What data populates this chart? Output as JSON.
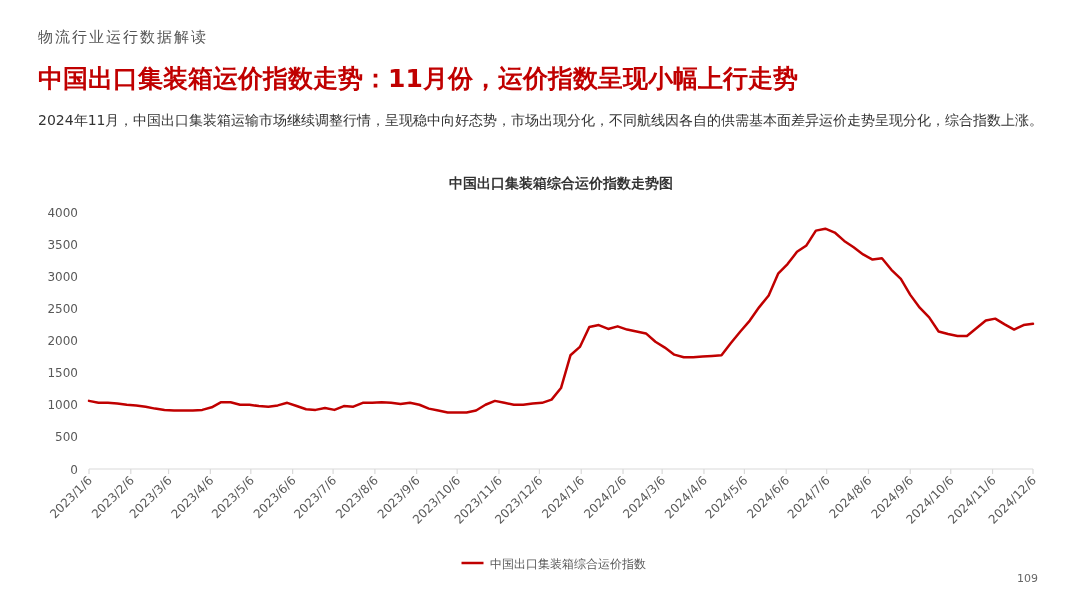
{
  "chart_data": {
    "type": "line",
    "title": "中国出口集装箱综合运价指数走势图",
    "annotations": [
      "物流行业运行数据解读",
      "中国出口集装箱运价指数走势：11月份，运价指数呈现小幅上行走势",
      "2024年11月，中国出口集装箱运输市场继续调整行情，呈现稳中向好态势，市场出现分化，不同航线因各自的供需基本面差异运价走势呈现分化，综合指数上涨。",
      "109"
    ],
    "x": [
      "2023-01-06",
      "2023-01-13",
      "2023-01-20",
      "2023-01-27",
      "2023-02-03",
      "2023-02-10",
      "2023-02-17",
      "2023-02-24",
      "2023-03-03",
      "2023-03-10",
      "2023-03-17",
      "2023-03-24",
      "2023-03-31",
      "2023-04-07",
      "2023-04-14",
      "2023-04-21",
      "2023-04-28",
      "2023-05-05",
      "2023-05-12",
      "2023-05-19",
      "2023-05-26",
      "2023-06-02",
      "2023-06-09",
      "2023-06-16",
      "2023-06-23",
      "2023-06-30",
      "2023-07-07",
      "2023-07-14",
      "2023-07-21",
      "2023-07-28",
      "2023-08-04",
      "2023-08-11",
      "2023-08-18",
      "2023-08-25",
      "2023-09-01",
      "2023-09-08",
      "2023-09-15",
      "2023-09-22",
      "2023-09-29",
      "2023-10-06",
      "2023-10-13",
      "2023-10-20",
      "2023-10-27",
      "2023-11-03",
      "2023-11-10",
      "2023-11-17",
      "2023-11-24",
      "2023-12-01",
      "2023-12-08",
      "2023-12-15",
      "2023-12-22",
      "2023-12-29",
      "2024-01-05",
      "2024-01-12",
      "2024-01-19",
      "2024-01-26",
      "2024-02-02",
      "2024-02-09",
      "2024-02-16",
      "2024-02-23",
      "2024-03-01",
      "2024-03-08",
      "2024-03-15",
      "2024-03-22",
      "2024-03-29",
      "2024-04-05",
      "2024-04-12",
      "2024-04-19",
      "2024-04-26",
      "2024-05-03",
      "2024-05-10",
      "2024-05-17",
      "2024-05-24",
      "2024-05-31",
      "2024-06-07",
      "2024-06-14",
      "2024-06-21",
      "2024-06-28",
      "2024-07-05",
      "2024-07-12",
      "2024-07-19",
      "2024-07-26",
      "2024-08-02",
      "2024-08-09",
      "2024-08-16",
      "2024-08-23",
      "2024-08-30",
      "2024-09-06",
      "2024-09-13",
      "2024-09-20",
      "2024-09-27",
      "2024-10-04",
      "2024-10-11",
      "2024-10-18",
      "2024-10-25",
      "2024-11-01",
      "2024-11-08",
      "2024-11-15",
      "2024-11-22",
      "2024-11-29",
      "2024-12-06"
    ],
    "series": [
      {
        "name": "中国出口集装箱综合运价指数",
        "color": "#c00000",
        "values": [
          1060,
          1030,
          1030,
          1020,
          1000,
          990,
          970,
          940,
          920,
          910,
          910,
          910,
          920,
          960,
          1040,
          1040,
          1000,
          1000,
          980,
          970,
          990,
          1030,
          980,
          930,
          920,
          950,
          920,
          980,
          970,
          1030,
          1030,
          1040,
          1030,
          1010,
          1030,
          1000,
          940,
          910,
          880,
          880,
          880,
          910,
          1000,
          1060,
          1030,
          1000,
          1000,
          1020,
          1030,
          1080,
          1260,
          1770,
          1900,
          2210,
          2240,
          2180,
          2220,
          2170,
          2140,
          2110,
          1980,
          1890,
          1780,
          1740,
          1740,
          1750,
          1760,
          1770,
          1960,
          2140,
          2310,
          2520,
          2700,
          3040,
          3190,
          3380,
          3480,
          3710,
          3740,
          3680,
          3550,
          3450,
          3340,
          3260,
          3280,
          3100,
          2960,
          2710,
          2510,
          2360,
          2140,
          2100,
          2070,
          2070,
          2190,
          2310,
          2340,
          2250,
          2170,
          2240,
          2260
        ]
      }
    ],
    "xlim": [
      "2023-01-06",
      "2024-12-06"
    ],
    "xticks": [
      {
        "value": "2023-01-06",
        "label": "2023/1/6"
      },
      {
        "value": "2023-02-06",
        "label": "2023/2/6"
      },
      {
        "value": "2023-03-06",
        "label": "2023/3/6"
      },
      {
        "value": "2023-04-06",
        "label": "2023/4/6"
      },
      {
        "value": "2023-05-06",
        "label": "2023/5/6"
      },
      {
        "value": "2023-06-06",
        "label": "2023/6/6"
      },
      {
        "value": "2023-07-06",
        "label": "2023/7/6"
      },
      {
        "value": "2023-08-06",
        "label": "2023/8/6"
      },
      {
        "value": "2023-09-06",
        "label": "2023/9/6"
      },
      {
        "value": "2023-10-06",
        "label": "2023/10/6"
      },
      {
        "value": "2023-11-06",
        "label": "2023/11/6"
      },
      {
        "value": "2023-12-06",
        "label": "2023/12/6"
      },
      {
        "value": "2024-01-06",
        "label": "2024/1/6"
      },
      {
        "value": "2024-02-06",
        "label": "2024/2/6"
      },
      {
        "value": "2024-03-06",
        "label": "2024/3/6"
      },
      {
        "value": "2024-04-06",
        "label": "2024/4/6"
      },
      {
        "value": "2024-05-06",
        "label": "2024/5/6"
      },
      {
        "value": "2024-06-06",
        "label": "2024/6/6"
      },
      {
        "value": "2024-07-06",
        "label": "2024/7/6"
      },
      {
        "value": "2024-08-06",
        "label": "2024/8/6"
      },
      {
        "value": "2024-09-06",
        "label": "2024/9/6"
      },
      {
        "value": "2024-10-06",
        "label": "2024/10/6"
      },
      {
        "value": "2024-11-06",
        "label": "2024/11/6"
      },
      {
        "value": "2024-12-06",
        "label": "2024/12/6"
      }
    ],
    "ylim": [
      0,
      4000
    ],
    "yticks": [
      0,
      500,
      1000,
      1500,
      2000,
      2500,
      3000,
      3500,
      4000
    ],
    "grid": false,
    "legend": "bottom",
    "marker": "none",
    "line_style": "solid"
  }
}
